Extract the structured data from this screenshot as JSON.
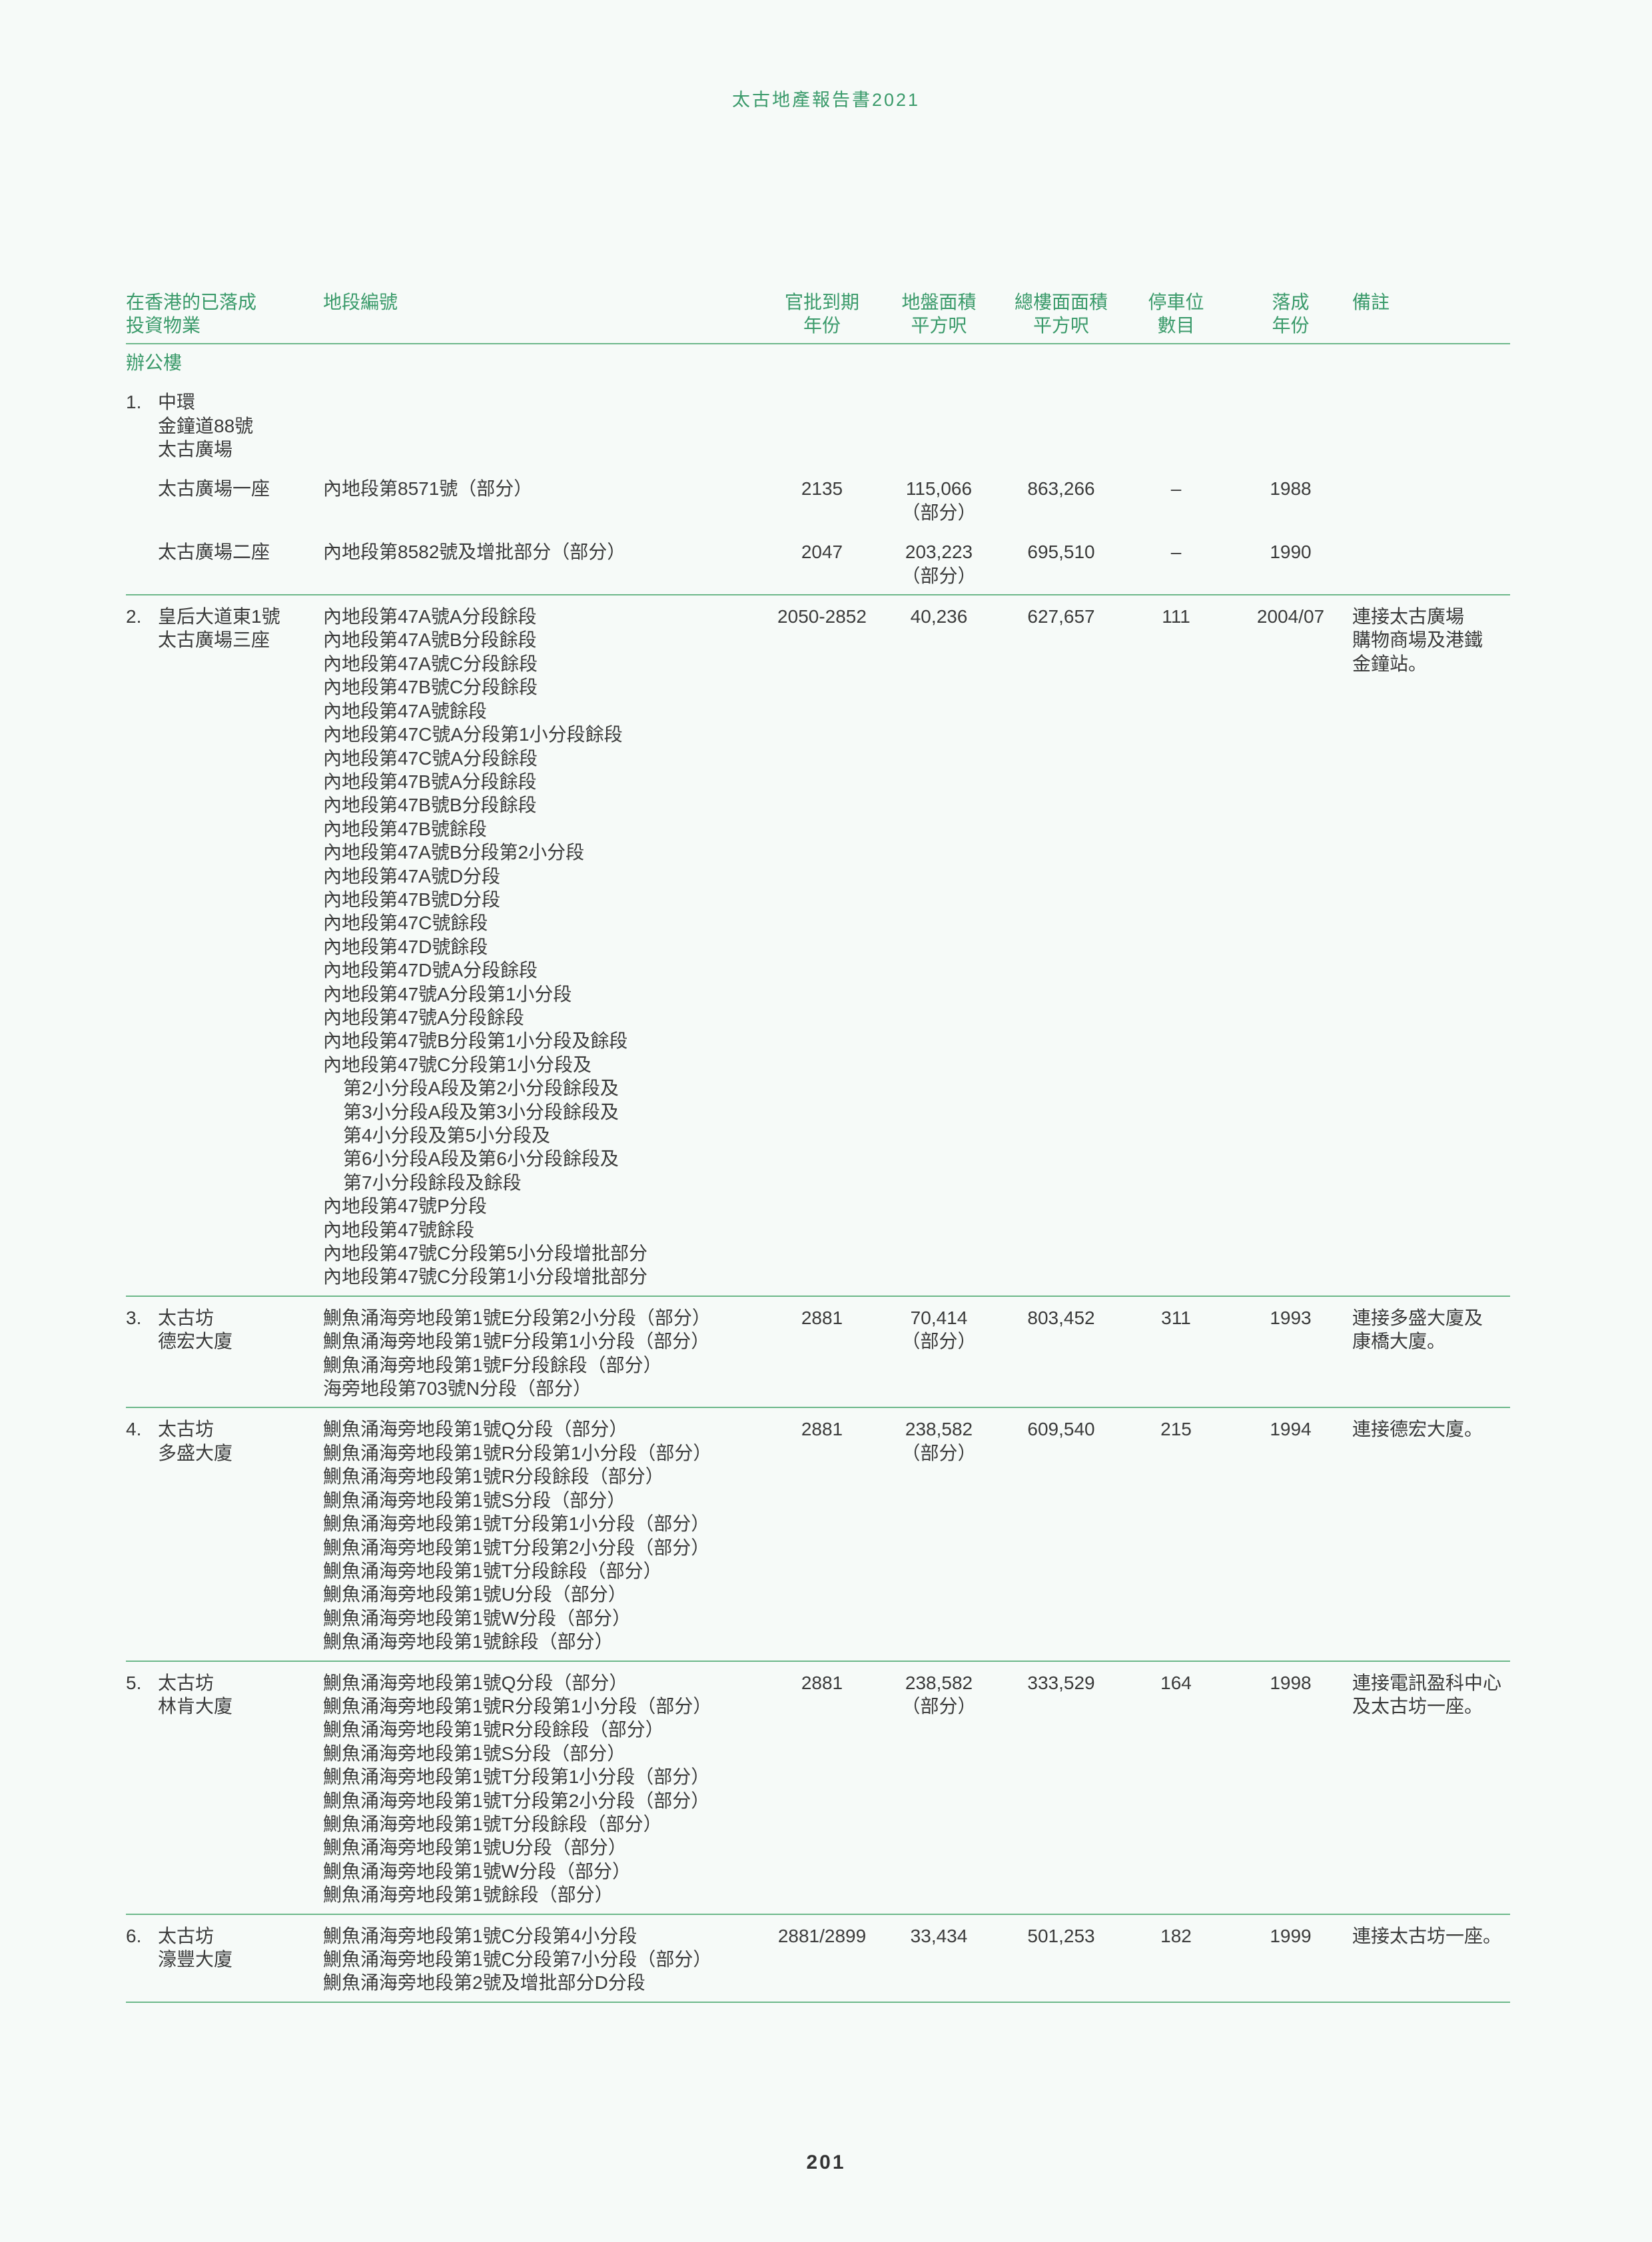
{
  "running_head": "太古地產報告書2021",
  "page_number": "201",
  "colors": {
    "accent": "#3a9a6a",
    "rule": "#6cb88a",
    "background": "#f6faf8"
  },
  "table": {
    "headers": {
      "property": [
        "在香港的已落成",
        "投資物業"
      ],
      "lot": [
        "地段編號"
      ],
      "lease_expiry": [
        "官批到期",
        "年份"
      ],
      "site_area": [
        "地盤面積",
        "平方呎"
      ],
      "gfa": [
        "總樓面面積",
        "平方呎"
      ],
      "parking": [
        "停車位",
        "數目"
      ],
      "completion": [
        "落成",
        "年份"
      ],
      "remarks": [
        "備註"
      ]
    },
    "section_title": "辦公樓",
    "properties": [
      {
        "no": "1.",
        "name": [
          "中環",
          "金鐘道88號",
          "太古廣場"
        ],
        "buildings": [
          {
            "name": "太古廣場一座",
            "lots": [
              "內地段第8571號（部分）"
            ],
            "lease_expiry": "2135",
            "site_area": [
              "115,066",
              "（部分）"
            ],
            "gfa": "863,266",
            "parking": "–",
            "completion": "1988",
            "remarks": []
          },
          {
            "name": "太古廣場二座",
            "lots": [
              "內地段第8582號及增批部分（部分）"
            ],
            "lease_expiry": "2047",
            "site_area": [
              "203,223",
              "（部分）"
            ],
            "gfa": "695,510",
            "parking": "–",
            "completion": "1990",
            "remarks": []
          }
        ]
      },
      {
        "no": "2.",
        "name": [
          "皇后大道東1號",
          "太古廣場三座"
        ],
        "lots": [
          "內地段第47A號A分段餘段",
          "內地段第47A號B分段餘段",
          "內地段第47A號C分段餘段",
          "內地段第47B號C分段餘段",
          "內地段第47A號餘段",
          "內地段第47C號A分段第1小分段餘段",
          "內地段第47C號A分段餘段",
          "內地段第47B號A分段餘段",
          "內地段第47B號B分段餘段",
          "內地段第47B號餘段",
          "內地段第47A號B分段第2小分段",
          "內地段第47A號D分段",
          "內地段第47B號D分段",
          "內地段第47C號餘段",
          "內地段第47D號餘段",
          "內地段第47D號A分段餘段",
          "內地段第47號A分段第1小分段",
          "內地段第47號A分段餘段",
          "內地段第47號B分段第1小分段及餘段",
          "內地段第47號C分段第1小分段及",
          "第2小分段A段及第2小分段餘段及",
          "第3小分段A段及第3小分段餘段及",
          "第4小分段及第5小分段及",
          "第6小分段A段及第6小分段餘段及",
          "第7小分段餘段及餘段",
          "內地段第47號P分段",
          "內地段第47號餘段",
          "內地段第47號C分段第5小分段增批部分",
          "內地段第47號C分段第1小分段增批部分"
        ],
        "lease_expiry": "2050-2852",
        "site_area": [
          "40,236"
        ],
        "gfa": "627,657",
        "parking": "111",
        "completion": "2004/07",
        "remarks": [
          "連接太古廣場",
          "購物商場及港鐵",
          "金鐘站。"
        ]
      },
      {
        "no": "3.",
        "name": [
          "太古坊",
          "德宏大廈"
        ],
        "lots": [
          "鰂魚涌海旁地段第1號E分段第2小分段（部分）",
          "鰂魚涌海旁地段第1號F分段第1小分段（部分）",
          "鰂魚涌海旁地段第1號F分段餘段（部分）",
          "海旁地段第703號N分段（部分）"
        ],
        "lease_expiry": "2881",
        "site_area": [
          "70,414",
          "（部分）"
        ],
        "gfa": "803,452",
        "parking": "311",
        "completion": "1993",
        "remarks": [
          "連接多盛大廈及",
          "康橋大廈。"
        ]
      },
      {
        "no": "4.",
        "name": [
          "太古坊",
          "多盛大廈"
        ],
        "lots": [
          "鰂魚涌海旁地段第1號Q分段（部分）",
          "鰂魚涌海旁地段第1號R分段第1小分段（部分）",
          "鰂魚涌海旁地段第1號R分段餘段（部分）",
          "鰂魚涌海旁地段第1號S分段（部分）",
          "鰂魚涌海旁地段第1號T分段第1小分段（部分）",
          "鰂魚涌海旁地段第1號T分段第2小分段（部分）",
          "鰂魚涌海旁地段第1號T分段餘段（部分）",
          "鰂魚涌海旁地段第1號U分段（部分）",
          "鰂魚涌海旁地段第1號W分段（部分）",
          "鰂魚涌海旁地段第1號餘段（部分）"
        ],
        "lease_expiry": "2881",
        "site_area": [
          "238,582",
          "（部分）"
        ],
        "gfa": "609,540",
        "parking": "215",
        "completion": "1994",
        "remarks": [
          "連接德宏大廈。"
        ]
      },
      {
        "no": "5.",
        "name": [
          "太古坊",
          "林肯大廈"
        ],
        "lots": [
          "鰂魚涌海旁地段第1號Q分段（部分）",
          "鰂魚涌海旁地段第1號R分段第1小分段（部分）",
          "鰂魚涌海旁地段第1號R分段餘段（部分）",
          "鰂魚涌海旁地段第1號S分段（部分）",
          "鰂魚涌海旁地段第1號T分段第1小分段（部分）",
          "鰂魚涌海旁地段第1號T分段第2小分段（部分）",
          "鰂魚涌海旁地段第1號T分段餘段（部分）",
          "鰂魚涌海旁地段第1號U分段（部分）",
          "鰂魚涌海旁地段第1號W分段（部分）",
          "鰂魚涌海旁地段第1號餘段（部分）"
        ],
        "lease_expiry": "2881",
        "site_area": [
          "238,582",
          "（部分）"
        ],
        "gfa": "333,529",
        "parking": "164",
        "completion": "1998",
        "remarks": [
          "連接電訊盈科中心",
          "及太古坊一座。"
        ]
      },
      {
        "no": "6.",
        "name": [
          "太古坊",
          "濠豐大廈"
        ],
        "lots": [
          "鰂魚涌海旁地段第1號C分段第4小分段",
          "鰂魚涌海旁地段第1號C分段第7小分段（部分）",
          "鰂魚涌海旁地段第2號及增批部分D分段"
        ],
        "lease_expiry": "2881/2899",
        "site_area": [
          "33,434"
        ],
        "gfa": "501,253",
        "parking": "182",
        "completion": "1999",
        "remarks": [
          "連接太古坊一座。"
        ]
      }
    ]
  }
}
